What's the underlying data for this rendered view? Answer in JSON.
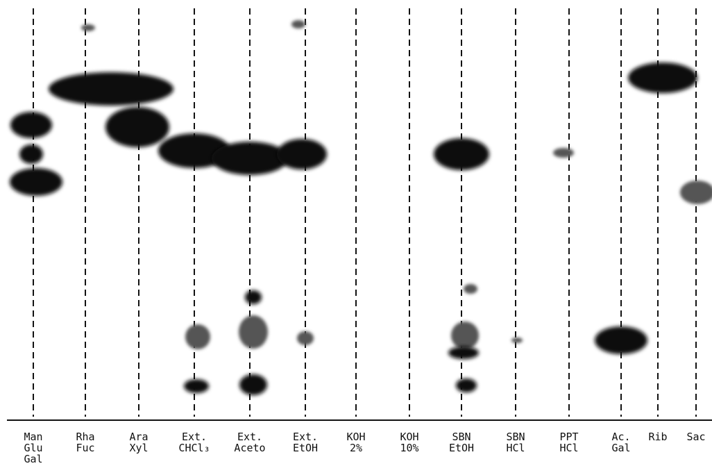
{
  "lanes": [
    {
      "label": [
        "Man",
        "Glu",
        "Gal"
      ]
    },
    {
      "label": [
        "Rha",
        "Fuc"
      ]
    },
    {
      "label": [
        "Ara",
        "Xyl"
      ]
    },
    {
      "label": [
        "Ext.",
        "CHCl₃"
      ]
    },
    {
      "label": [
        "Ext.",
        "Aceto"
      ]
    },
    {
      "label": [
        "Ext.",
        "EtOH"
      ]
    },
    {
      "label": [
        "KOH",
        "2%"
      ]
    },
    {
      "label": [
        "KOH",
        "10%"
      ]
    },
    {
      "label": [
        "SBN",
        "EtOH"
      ]
    },
    {
      "label": [
        "SBN",
        "HCl"
      ]
    },
    {
      "label": [
        "PPT",
        "HCl"
      ]
    },
    {
      "label": [
        "Ac.",
        "Gal"
      ]
    },
    {
      "label": [
        "Rib"
      ]
    },
    {
      "label": [
        "Sac"
      ]
    }
  ]
}
